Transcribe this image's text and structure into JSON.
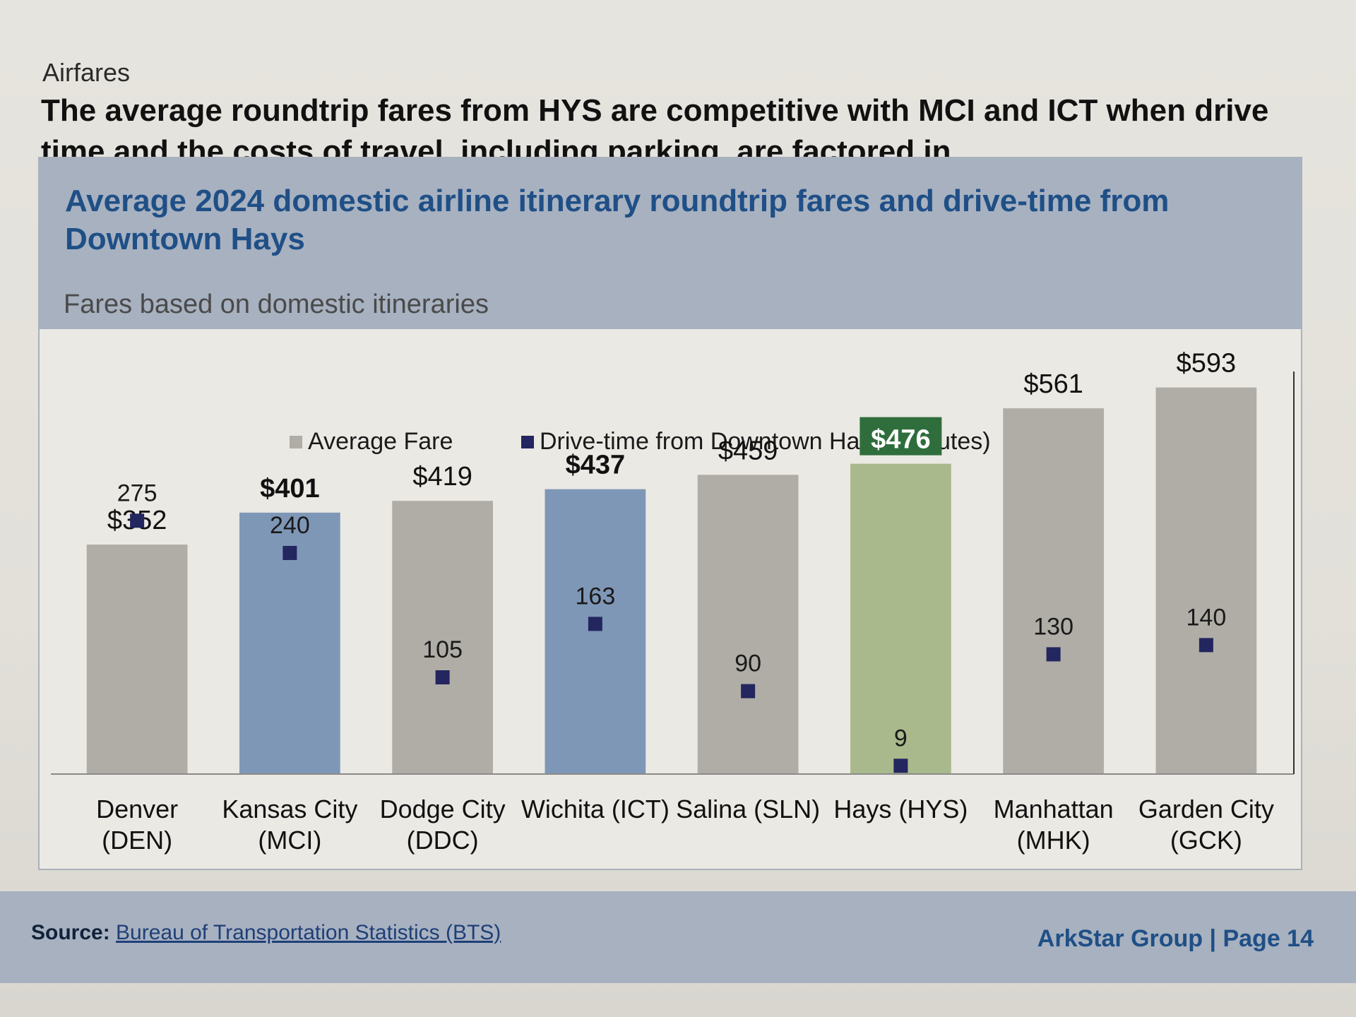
{
  "section_label": "Airfares",
  "headline": "The average roundtrip fares from HYS are competitive with MCI and ICT when drive time and the costs of travel, including parking, are factored in",
  "footer": {
    "source_label": "Source:",
    "source_link": "Bureau of Transportation Statistics (BTS)",
    "brand": "ArkStar Group | Page 14"
  },
  "colors": {
    "default_bar": "#b0ada6",
    "highlight_bar": "#7f97b7",
    "hays_bar": "#a9b98c",
    "hays_label_bg": "#2f6e3c",
    "marker": "#23265f"
  },
  "chart_data": {
    "type": "bar",
    "title": "Average 2024 domestic airline itinerary roundtrip fares and drive-time from Downtown Hays",
    "subtitle": "Fares based on domestic itineraries",
    "legend": [
      {
        "name": "Average Fare",
        "color": "#b0ada6"
      },
      {
        "name": "Drive-time from Downtown Hays (minutes)",
        "color": "#23265f"
      }
    ],
    "categories": [
      [
        "Denver",
        "(DEN)"
      ],
      [
        "Kansas City",
        "(MCI)"
      ],
      [
        "Dodge City",
        "(DDC)"
      ],
      [
        "Wichita (ICT)",
        ""
      ],
      [
        "Salina (SLN)",
        ""
      ],
      [
        "Hays (HYS)",
        ""
      ],
      [
        "Manhattan",
        "(MHK)"
      ],
      [
        "Garden City",
        "(GCK)"
      ]
    ],
    "series": [
      {
        "name": "Average Fare",
        "values": [
          352,
          401,
          419,
          437,
          459,
          476,
          561,
          593
        ],
        "labels": [
          "$352",
          "$401",
          "$419",
          "$437",
          "$459",
          "$476",
          "$561",
          "$593"
        ],
        "bar_style": [
          "default",
          "highlight",
          "default",
          "highlight",
          "default",
          "hays",
          "default",
          "default"
        ],
        "bold": [
          false,
          true,
          false,
          true,
          false,
          true,
          false,
          false
        ]
      },
      {
        "name": "Drive-time from Downtown Hays (minutes)",
        "values": [
          275,
          240,
          105,
          163,
          90,
          9,
          130,
          140
        ],
        "labels": [
          "275",
          "240",
          "105",
          "163",
          "90",
          "9",
          "130",
          "140"
        ]
      }
    ],
    "fare_axis": [
      0,
      650
    ],
    "drive_axis": [
      0,
      460
    ],
    "grid": false
  }
}
